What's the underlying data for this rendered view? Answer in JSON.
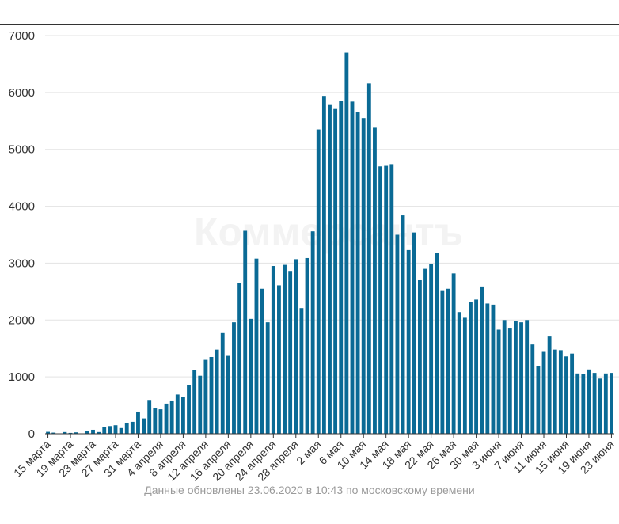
{
  "watermark": "Коммерсантъ",
  "footer_note": "Данные обновлены 23.06.2020 в 10:43 по московскому времени",
  "colors": {
    "bar": "#0a6a95",
    "grid": "#e3e3e3",
    "axis": "#333333"
  },
  "chart_data": {
    "type": "bar",
    "title": "",
    "xlabel": "",
    "ylabel": "",
    "ylim": [
      0,
      7000
    ],
    "yticks": [
      0,
      1000,
      2000,
      3000,
      4000,
      5000,
      6000,
      7000
    ],
    "grid": true,
    "legend": "none",
    "x_tick_labels": [
      "15 марта",
      "19 марта",
      "23 марта",
      "27 марта",
      "31 марта",
      "4 апреля",
      "8 апреля",
      "12 апреля",
      "16 апреля",
      "20 апреля",
      "24 апреля",
      "28 апреля",
      "2 мая",
      "6 мая",
      "10 мая",
      "14 мая",
      "18 мая",
      "22 мая",
      "26 мая",
      "30 мая",
      "3 июня",
      "7 июня",
      "11 июня",
      "15 июня",
      "19 июня",
      "23 июня"
    ],
    "categories": [
      "15.03",
      "16.03",
      "17.03",
      "18.03",
      "19.03",
      "20.03",
      "21.03",
      "22.03",
      "23.03",
      "24.03",
      "25.03",
      "26.03",
      "27.03",
      "28.03",
      "29.03",
      "30.03",
      "31.03",
      "01.04",
      "02.04",
      "03.04",
      "04.04",
      "05.04",
      "06.04",
      "07.04",
      "08.04",
      "09.04",
      "10.04",
      "11.04",
      "12.04",
      "13.04",
      "14.04",
      "15.04",
      "16.04",
      "17.04",
      "18.04",
      "19.04",
      "20.04",
      "21.04",
      "22.04",
      "23.04",
      "24.04",
      "25.04",
      "26.04",
      "27.04",
      "28.04",
      "29.04",
      "30.04",
      "01.05",
      "02.05",
      "03.05",
      "04.05",
      "05.05",
      "06.05",
      "07.05",
      "08.05",
      "09.05",
      "10.05",
      "11.05",
      "12.05",
      "13.05",
      "14.05",
      "15.05",
      "16.05",
      "17.05",
      "18.05",
      "19.05",
      "20.05",
      "21.05",
      "22.05",
      "23.05",
      "24.05",
      "25.05",
      "26.05",
      "27.05",
      "28.05",
      "29.05",
      "30.05",
      "31.05",
      "01.06",
      "02.06",
      "03.06",
      "04.06",
      "05.06",
      "06.06",
      "07.06",
      "08.06",
      "09.06",
      "10.06",
      "11.06",
      "12.06",
      "13.06",
      "14.06",
      "15.06",
      "16.06",
      "17.06",
      "18.06",
      "19.06",
      "20.06",
      "21.06",
      "22.06",
      "23.06"
    ],
    "values": [
      34,
      20,
      0,
      30,
      15,
      25,
      0,
      55,
      70,
      30,
      120,
      135,
      150,
      100,
      195,
      210,
      390,
      270,
      595,
      445,
      430,
      530,
      585,
      690,
      650,
      850,
      1120,
      1020,
      1300,
      1350,
      1480,
      1770,
      1370,
      1960,
      2650,
      3570,
      2020,
      3080,
      2550,
      1960,
      2950,
      2610,
      2970,
      2850,
      3070,
      2210,
      3090,
      3560,
      5350,
      5940,
      5780,
      5710,
      5850,
      6700,
      5840,
      5650,
      5550,
      6160,
      5380,
      4700,
      4710,
      4740,
      3500,
      3840,
      3230,
      3540,
      2700,
      2900,
      2980,
      3180,
      2510,
      2550,
      2820,
      2140,
      2040,
      2320,
      2360,
      2590,
      2290,
      2270,
      1830,
      2000,
      1850,
      1990,
      1960,
      2000,
      1570,
      1190,
      1440,
      1710,
      1480,
      1470,
      1360,
      1410,
      1060,
      1050,
      1130,
      1070,
      970,
      1060,
      1070
    ]
  }
}
